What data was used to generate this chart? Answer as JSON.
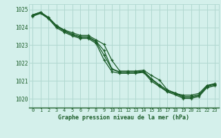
{
  "title": "Graphe pression niveau de la mer (hPa)",
  "bg_color": "#d4f0eb",
  "grid_color": "#b0d8d0",
  "line_color": "#1a5c28",
  "xlim": [
    -0.5,
    23.5
  ],
  "ylim": [
    1019.5,
    1025.3
  ],
  "yticks": [
    1020,
    1021,
    1022,
    1023,
    1024,
    1025
  ],
  "xticks": [
    0,
    1,
    2,
    3,
    4,
    5,
    6,
    7,
    8,
    9,
    10,
    11,
    12,
    13,
    14,
    15,
    16,
    17,
    18,
    19,
    20,
    21,
    22,
    23
  ],
  "series": [
    [
      1024.7,
      1024.85,
      1024.55,
      1024.1,
      1023.85,
      1023.7,
      1023.55,
      1023.55,
      1023.3,
      1023.05,
      1022.15,
      1021.55,
      1021.55,
      1021.55,
      1021.6,
      1021.3,
      1021.05,
      1020.5,
      1020.3,
      1020.2,
      1020.2,
      1020.3,
      1020.75,
      1020.85
    ],
    [
      1024.7,
      1024.85,
      1024.55,
      1024.1,
      1023.82,
      1023.62,
      1023.48,
      1023.48,
      1023.22,
      1022.7,
      1021.68,
      1021.5,
      1021.5,
      1021.5,
      1021.55,
      1021.12,
      1020.78,
      1020.48,
      1020.33,
      1020.12,
      1020.12,
      1020.22,
      1020.7,
      1020.82
    ],
    [
      1024.65,
      1024.82,
      1024.52,
      1024.05,
      1023.78,
      1023.58,
      1023.44,
      1023.44,
      1023.18,
      1022.45,
      1021.65,
      1021.48,
      1021.48,
      1021.48,
      1021.5,
      1021.08,
      1020.72,
      1020.42,
      1020.28,
      1020.08,
      1020.08,
      1020.18,
      1020.68,
      1020.78
    ],
    [
      1024.62,
      1024.78,
      1024.48,
      1023.98,
      1023.72,
      1023.52,
      1023.38,
      1023.38,
      1023.1,
      1022.18,
      1021.52,
      1021.42,
      1021.42,
      1021.42,
      1021.48,
      1020.98,
      1020.68,
      1020.38,
      1020.22,
      1020.02,
      1020.02,
      1020.12,
      1020.62,
      1020.72
    ]
  ]
}
